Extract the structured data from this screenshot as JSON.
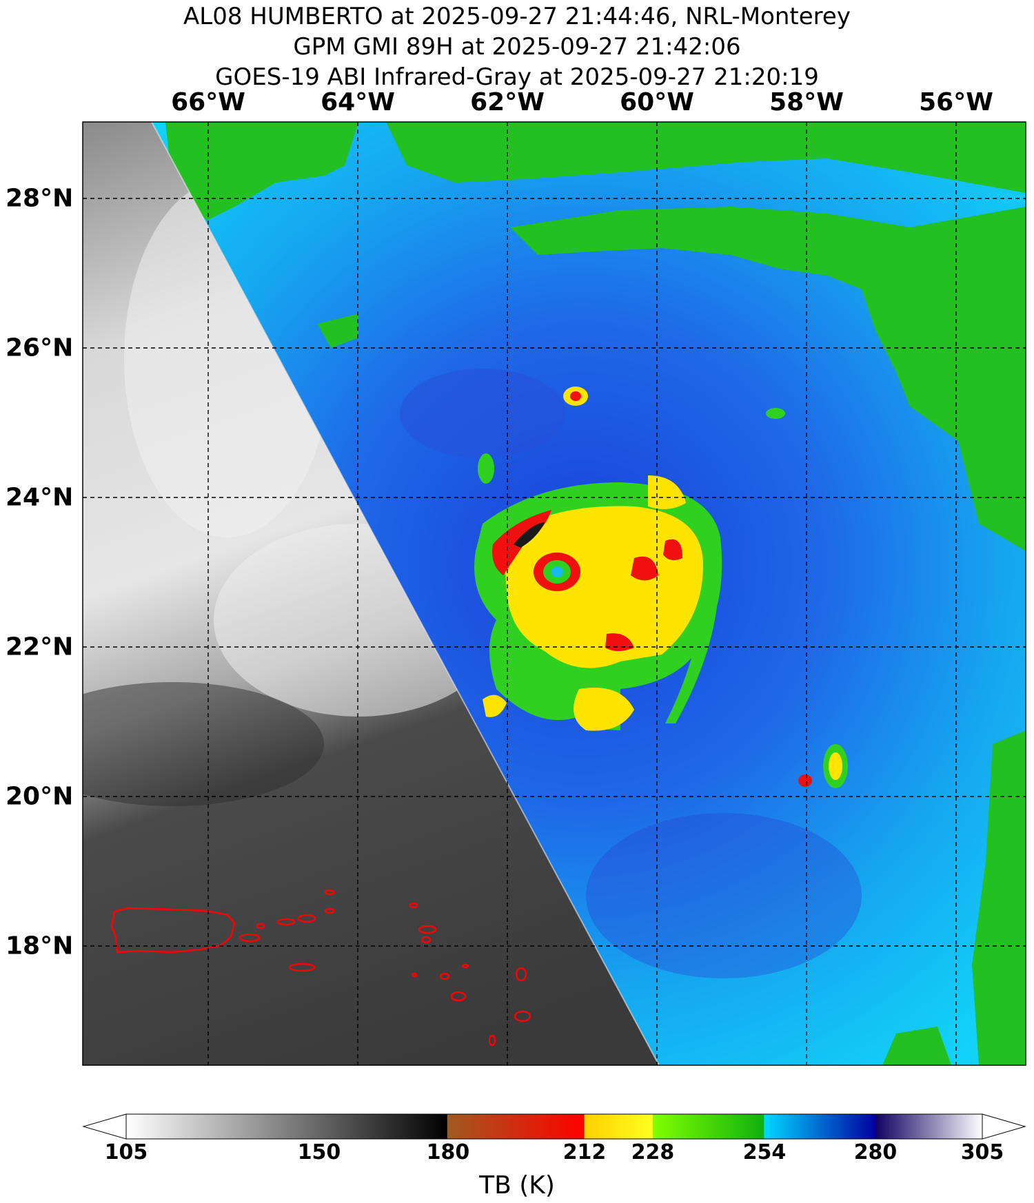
{
  "title": {
    "line1": "AL08 HUMBERTO at 2025-09-27 21:44:46, NRL-Monterey",
    "line2": "GPM GMI 89H at 2025-09-27 21:42:06",
    "line3": "GOES-19 ABI Infrared-Gray at 2025-09-27 21:20:19"
  },
  "map": {
    "longitude_labels": [
      "66°W",
      "64°W",
      "62°W",
      "60°W",
      "58°W",
      "56°W"
    ],
    "latitude_labels": [
      "28°N",
      "26°N",
      "24°N",
      "22°N",
      "20°N",
      "18°N"
    ],
    "gridlines": "dashed black",
    "coastline_color": "#ff0000",
    "storm_center": {
      "lon": "61.3°W",
      "lat": "23.0°N"
    }
  },
  "colorbar": {
    "title": "TB (K)",
    "tick_labels": [
      "105",
      "150",
      "180",
      "212",
      "228",
      "254",
      "280",
      "305"
    ],
    "range": [
      105,
      305
    ],
    "segments": [
      {
        "from": 105,
        "to": 180,
        "colors": [
          "#ffffff",
          "#000000"
        ]
      },
      {
        "from": 180,
        "to": 212,
        "colors": [
          "#a05a20",
          "#ff0000"
        ]
      },
      {
        "from": 212,
        "to": 228,
        "colors": [
          "#ffd000",
          "#ffff20"
        ]
      },
      {
        "from": 228,
        "to": 254,
        "colors": [
          "#80ff00",
          "#10b010"
        ]
      },
      {
        "from": 254,
        "to": 280,
        "colors": [
          "#00d8ff",
          "#0000a0"
        ]
      },
      {
        "from": 280,
        "to": 305,
        "colors": [
          "#100060",
          "#ffffff"
        ]
      }
    ]
  }
}
